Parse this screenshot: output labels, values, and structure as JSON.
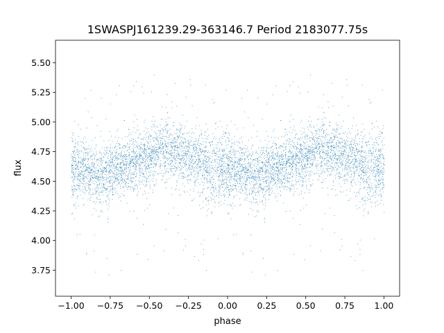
{
  "chart_data": {
    "type": "scatter",
    "title": "1SWASPJ161239.29-363146.7 Period 2183077.75s",
    "xlabel": "phase",
    "ylabel": "flux",
    "xlim": [
      -1.1,
      1.1
    ],
    "ylim": [
      3.53,
      5.69
    ],
    "x_ticks": [
      -1.0,
      -0.75,
      -0.5,
      -0.25,
      0.0,
      0.25,
      0.5,
      0.75,
      1.0
    ],
    "x_tick_labels": [
      "−1.00",
      "−0.75",
      "−0.50",
      "−0.25",
      "0.00",
      "0.25",
      "0.50",
      "0.75",
      "1.00"
    ],
    "y_ticks": [
      3.75,
      4.0,
      4.25,
      4.5,
      4.75,
      5.0,
      5.25,
      5.5
    ],
    "y_tick_labels": [
      "3.75",
      "4.00",
      "4.25",
      "4.50",
      "4.75",
      "5.00",
      "5.25",
      "5.50"
    ],
    "grid": false,
    "marker_color": "#1f77b4",
    "phase_profile": [
      {
        "phase": 0.0,
        "median_flux": 4.62,
        "spread": 0.15
      },
      {
        "phase": 0.05,
        "median_flux": 4.6,
        "spread": 0.14
      },
      {
        "phase": 0.1,
        "median_flux": 4.58,
        "spread": 0.13
      },
      {
        "phase": 0.15,
        "median_flux": 4.56,
        "spread": 0.13
      },
      {
        "phase": 0.2,
        "median_flux": 4.55,
        "spread": 0.14
      },
      {
        "phase": 0.25,
        "median_flux": 4.57,
        "spread": 0.13
      },
      {
        "phase": 0.3,
        "median_flux": 4.6,
        "spread": 0.12
      },
      {
        "phase": 0.35,
        "median_flux": 4.63,
        "spread": 0.12
      },
      {
        "phase": 0.4,
        "median_flux": 4.66,
        "spread": 0.12
      },
      {
        "phase": 0.45,
        "median_flux": 4.68,
        "spread": 0.12
      },
      {
        "phase": 0.5,
        "median_flux": 4.7,
        "spread": 0.12
      },
      {
        "phase": 0.55,
        "median_flux": 4.74,
        "spread": 0.12
      },
      {
        "phase": 0.6,
        "median_flux": 4.76,
        "spread": 0.13
      },
      {
        "phase": 0.65,
        "median_flux": 4.75,
        "spread": 0.13
      },
      {
        "phase": 0.7,
        "median_flux": 4.73,
        "spread": 0.13
      },
      {
        "phase": 0.75,
        "median_flux": 4.71,
        "spread": 0.13
      },
      {
        "phase": 0.8,
        "median_flux": 4.68,
        "spread": 0.14
      },
      {
        "phase": 0.85,
        "median_flux": 4.64,
        "spread": 0.15
      },
      {
        "phase": 0.9,
        "median_flux": 4.58,
        "spread": 0.17
      },
      {
        "phase": 0.95,
        "median_flux": 4.6,
        "spread": 0.15
      },
      {
        "phase": 1.0,
        "median_flux": 4.62,
        "spread": 0.15
      }
    ],
    "repeated_over_phase": [
      -1.0,
      1.0
    ]
  }
}
